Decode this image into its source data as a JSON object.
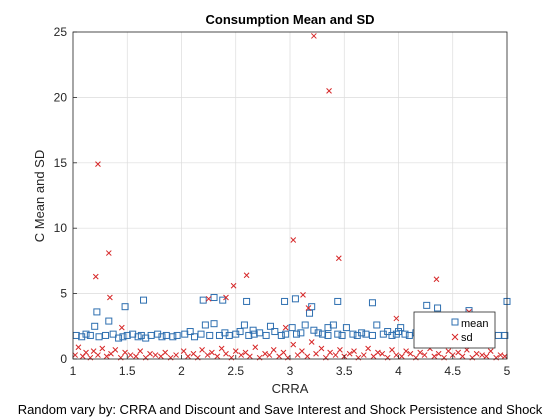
{
  "chart_data": {
    "type": "scatter",
    "title": "Consumption Mean and SD",
    "xlabel": "CRRA",
    "ylabel": "C Mean and SD",
    "footnote": "Random vary by: CRRA and Discount and Save Interest and Shock Persistence and Shock",
    "xlim": [
      1,
      5
    ],
    "ylim": [
      0,
      25
    ],
    "xticks": [
      1,
      1.5,
      2,
      2.5,
      3,
      3.5,
      4,
      4.5,
      5
    ],
    "xtick_labels": [
      "1",
      "1.5",
      "2",
      "2.5",
      "3",
      "3.5",
      "4",
      "4.5",
      "5"
    ],
    "yticks": [
      0,
      5,
      10,
      15,
      20,
      25
    ],
    "ytick_labels": [
      "0",
      "5",
      "10",
      "15",
      "20",
      "25"
    ],
    "grid": true,
    "legend_position": "bottom-right",
    "colors": {
      "mean": "#2e6fb0",
      "sd": "#d62728",
      "axis": "#262626",
      "grid": "#dcdcdc"
    },
    "series": [
      {
        "name": "mean",
        "marker": "square",
        "color": "#2e6fb0",
        "x": [
          1.03,
          1.08,
          1.12,
          1.16,
          1.2,
          1.24,
          1.3,
          1.33,
          1.37,
          1.42,
          1.46,
          1.5,
          1.55,
          1.6,
          1.63,
          1.67,
          1.72,
          1.78,
          1.82,
          1.86,
          1.92,
          1.96,
          2.03,
          2.08,
          2.12,
          2.18,
          2.22,
          2.26,
          2.3,
          2.35,
          2.4,
          2.44,
          2.5,
          2.54,
          2.58,
          2.62,
          2.67,
          2.72,
          2.78,
          2.82,
          2.86,
          2.92,
          2.96,
          3.02,
          3.06,
          3.1,
          3.14,
          3.18,
          3.22,
          3.26,
          3.3,
          3.35,
          3.4,
          3.44,
          3.48,
          3.52,
          3.58,
          3.62,
          3.66,
          3.7,
          3.76,
          3.8,
          3.86,
          3.9,
          3.94,
          3.98,
          4.02,
          4.06,
          4.1,
          4.16,
          4.22,
          4.28,
          4.32,
          4.36,
          4.4,
          4.46,
          4.52,
          4.58,
          4.62,
          4.68,
          4.72,
          4.78,
          4.86,
          4.92,
          4.98,
          1.22,
          1.48,
          1.65,
          2.2,
          2.3,
          2.38,
          2.6,
          2.95,
          3.05,
          3.2,
          3.44,
          3.76,
          4.26,
          4.36,
          4.65,
          5.0,
          2.66,
          3.35,
          4.0
        ],
        "y": [
          1.8,
          1.7,
          1.9,
          1.8,
          2.5,
          1.7,
          1.8,
          2.9,
          1.9,
          1.6,
          1.7,
          1.8,
          1.9,
          1.7,
          1.8,
          1.6,
          1.8,
          1.9,
          1.7,
          1.8,
          1.7,
          1.8,
          1.9,
          2.1,
          1.7,
          1.9,
          2.6,
          1.8,
          2.7,
          1.8,
          2.0,
          1.8,
          1.9,
          2.1,
          2.6,
          1.8,
          1.9,
          2.0,
          1.8,
          2.5,
          2.1,
          1.8,
          1.9,
          2.4,
          1.9,
          2.0,
          2.6,
          3.5,
          2.2,
          2.0,
          1.9,
          1.8,
          2.6,
          1.9,
          1.8,
          2.4,
          1.9,
          1.8,
          2.0,
          1.9,
          1.8,
          2.6,
          1.9,
          2.1,
          1.8,
          1.9,
          2.4,
          1.9,
          1.8,
          2.0,
          1.9,
          1.8,
          2.6,
          1.9,
          1.9,
          1.8,
          1.9,
          1.8,
          2.1,
          1.9,
          1.8,
          1.8,
          1.9,
          1.8,
          1.8,
          3.6,
          4.0,
          4.5,
          4.5,
          4.7,
          4.5,
          4.4,
          4.4,
          4.6,
          4.0,
          4.4,
          4.3,
          4.1,
          3.9,
          3.7,
          4.4,
          2.2,
          2.4,
          2.1
        ]
      },
      {
        "name": "sd",
        "marker": "x",
        "color": "#d62728",
        "x": [
          1.02,
          1.05,
          1.09,
          1.12,
          1.16,
          1.19,
          1.23,
          1.27,
          1.31,
          1.35,
          1.39,
          1.44,
          1.48,
          1.53,
          1.58,
          1.62,
          1.67,
          1.71,
          1.76,
          1.81,
          1.85,
          1.9,
          1.95,
          2.02,
          2.06,
          2.11,
          2.15,
          2.19,
          2.24,
          2.28,
          2.33,
          2.37,
          2.41,
          2.46,
          2.5,
          2.55,
          2.59,
          2.63,
          2.68,
          2.72,
          2.77,
          2.81,
          2.85,
          2.9,
          2.94,
          2.98,
          3.03,
          3.07,
          3.11,
          3.16,
          3.2,
          3.24,
          3.29,
          3.33,
          3.37,
          3.42,
          3.46,
          3.5,
          3.55,
          3.59,
          3.63,
          3.68,
          3.72,
          3.77,
          3.81,
          3.85,
          3.9,
          3.94,
          3.98,
          4.03,
          4.07,
          4.11,
          4.16,
          4.2,
          4.24,
          4.29,
          4.33,
          4.37,
          4.42,
          4.46,
          4.5,
          4.55,
          4.59,
          4.63,
          4.68,
          4.72,
          4.77,
          4.81,
          4.85,
          4.9,
          4.94,
          4.98,
          1.21,
          1.23,
          1.33,
          1.34,
          1.45,
          2.25,
          2.41,
          2.48,
          2.6,
          3.03,
          3.12,
          3.22,
          3.36,
          3.45,
          3.98,
          4.35,
          4.65,
          3.17,
          2.96
        ],
        "y": [
          0.3,
          0.9,
          0.2,
          0.5,
          0.1,
          0.6,
          0.3,
          0.8,
          0.2,
          0.4,
          0.7,
          0.1,
          0.5,
          0.3,
          0.2,
          0.6,
          0.1,
          0.4,
          0.3,
          0.2,
          0.5,
          0.1,
          0.3,
          0.6,
          0.2,
          0.4,
          0.1,
          0.7,
          0.3,
          0.5,
          0.2,
          0.8,
          0.4,
          0.1,
          0.6,
          0.3,
          0.5,
          0.2,
          0.9,
          0.1,
          0.4,
          0.3,
          0.7,
          0.2,
          0.5,
          0.1,
          1.1,
          0.3,
          0.6,
          0.2,
          1.3,
          0.4,
          0.8,
          0.1,
          0.5,
          0.3,
          0.7,
          0.2,
          0.4,
          0.6,
          0.1,
          0.3,
          0.8,
          0.2,
          0.5,
          0.4,
          0.1,
          0.7,
          0.3,
          0.2,
          0.6,
          0.4,
          0.1,
          0.5,
          0.3,
          0.8,
          0.2,
          0.4,
          0.1,
          0.6,
          0.3,
          0.5,
          0.2,
          0.7,
          0.1,
          0.4,
          0.3,
          0.2,
          0.6,
          0.1,
          0.3,
          0.2,
          6.3,
          14.9,
          8.1,
          4.7,
          2.4,
          4.6,
          4.7,
          5.6,
          6.4,
          9.1,
          4.9,
          24.7,
          20.5,
          7.7,
          3.1,
          6.1,
          3.6,
          3.9,
          2.4
        ]
      }
    ]
  }
}
